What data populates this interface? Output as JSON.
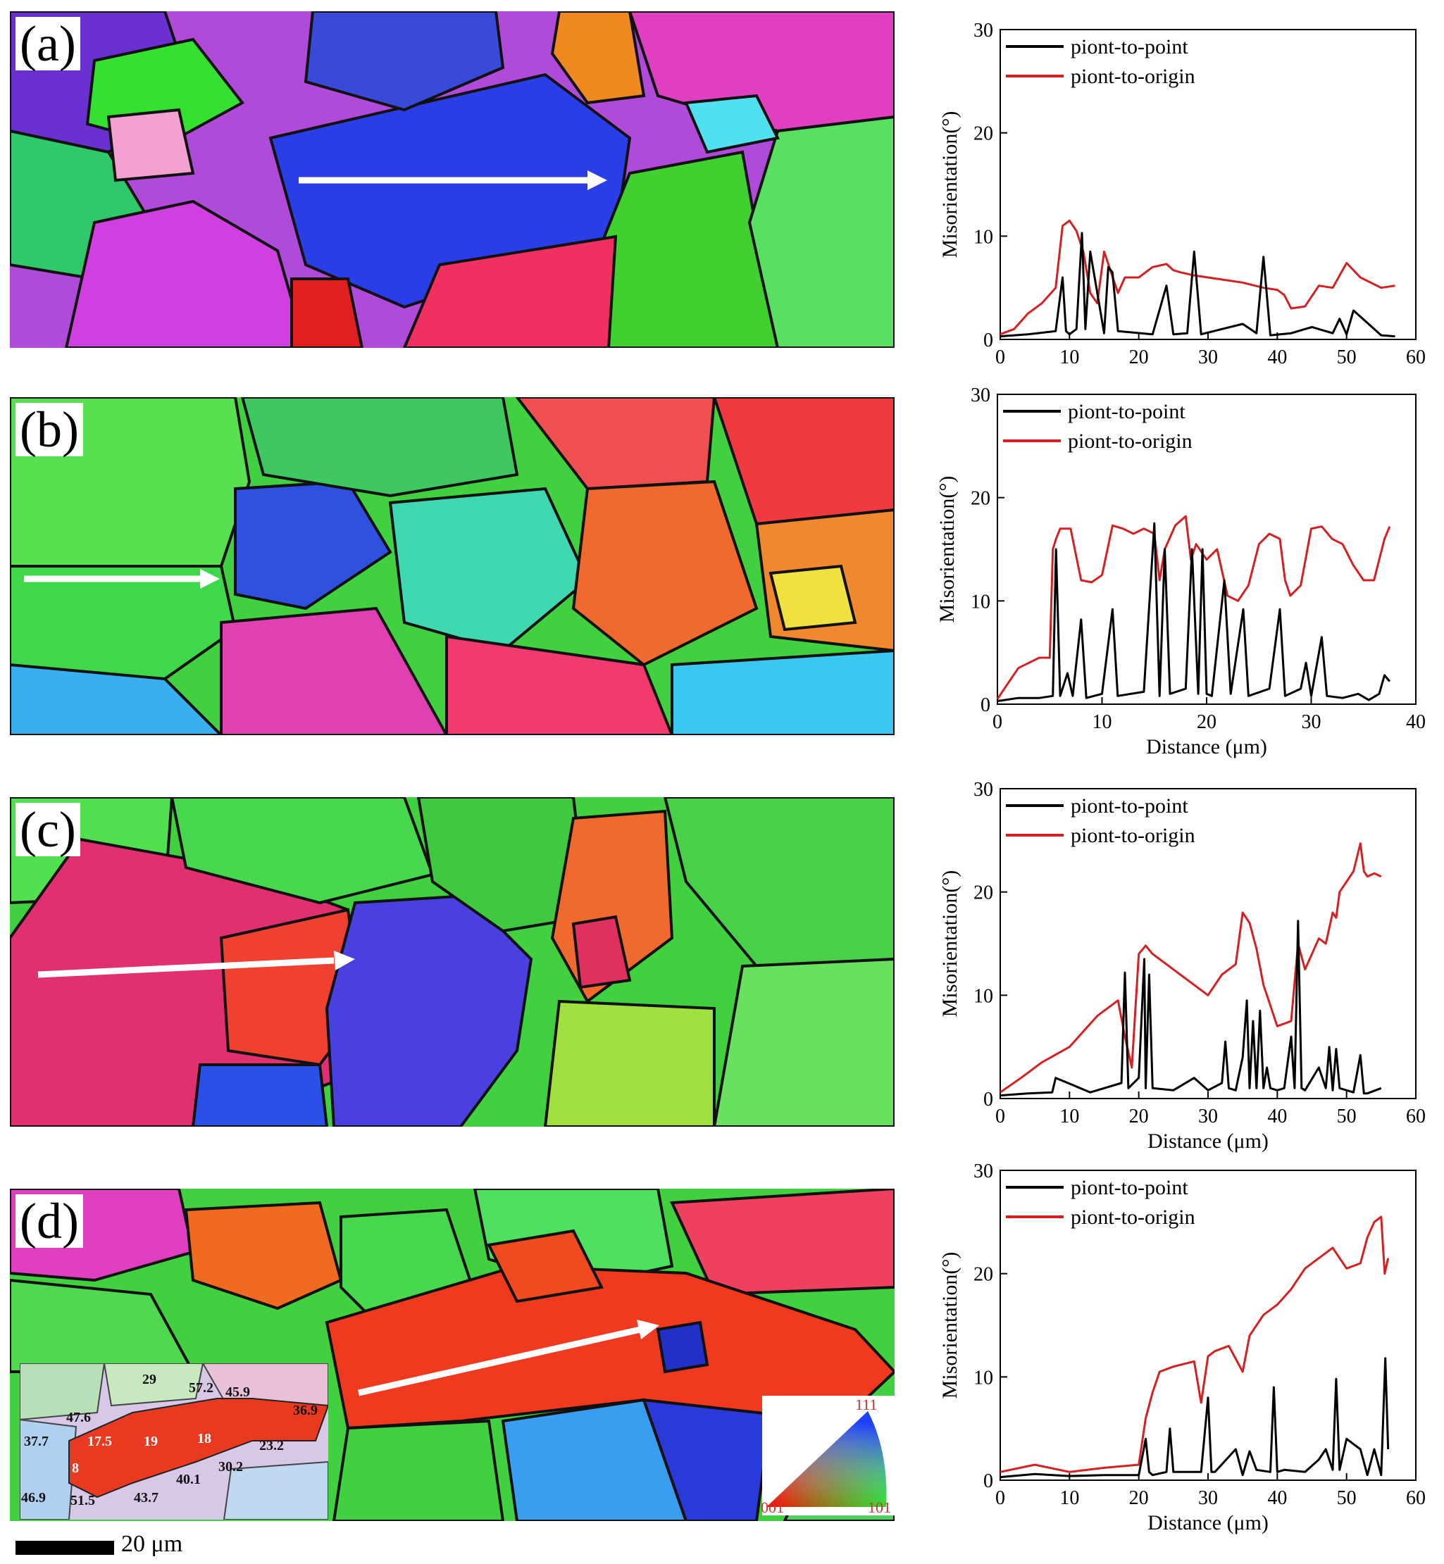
{
  "panels": [
    {
      "label": "(a)"
    },
    {
      "label": "(b)"
    },
    {
      "label": "(c)"
    },
    {
      "label": "(d)"
    }
  ],
  "legend": {
    "p2p": "piont-to-point",
    "p2o": "piont-to-origin"
  },
  "colors": {
    "p2p": "#000000",
    "p2o": "#d42020",
    "arrow": "#ffffff"
  },
  "ylabel": "Misorientation(°)",
  "xlabel": "Distance (μm)",
  "scale_bar": "20 μm",
  "ipf": {
    "a": "001",
    "b": "101",
    "c": "111"
  },
  "inset_values": [
    "29",
    "57.2",
    "45.9",
    "36.9",
    "47.6",
    "37.7",
    "17.5",
    "19",
    "18",
    "23.2",
    "30.2",
    "8",
    "40.1",
    "46.9",
    "51.5",
    "43.7"
  ],
  "chart_data": [
    {
      "type": "line",
      "panel": "(a)",
      "xlabel": "",
      "ylabel": "Misorientation(°)",
      "xlim": [
        0,
        60
      ],
      "ylim": [
        0,
        30
      ],
      "xticks": [
        0,
        10,
        20,
        30,
        40,
        50,
        60
      ],
      "yticks": [
        0,
        10,
        20,
        30
      ],
      "series": [
        {
          "name": "piont-to-point",
          "x": [
            0,
            4,
            8,
            9,
            9.5,
            10,
            11,
            11.8,
            12.3,
            13,
            15,
            15.6,
            16.2,
            17,
            22,
            24,
            25,
            27,
            28,
            29,
            35,
            37,
            38,
            39,
            42,
            45,
            48,
            49,
            50,
            51,
            55,
            57
          ],
          "y": [
            0.3,
            0.5,
            0.8,
            6,
            0.8,
            0.5,
            1,
            10.3,
            1,
            8.5,
            0.6,
            7,
            6.5,
            0.8,
            0.5,
            5.2,
            0.5,
            0.6,
            8.5,
            0.5,
            1.5,
            0.6,
            8,
            0.4,
            0.6,
            1.2,
            0.6,
            2,
            0.5,
            2.8,
            0.4,
            0.3
          ]
        },
        {
          "name": "piont-to-origin",
          "x": [
            0,
            2,
            4,
            6,
            8,
            9,
            10,
            11,
            12,
            13,
            14,
            15,
            16,
            17,
            18,
            20,
            22,
            24,
            25,
            26,
            28,
            30,
            35,
            38,
            40,
            41,
            42,
            44,
            46,
            48,
            50,
            52,
            55,
            57
          ],
          "y": [
            0.5,
            1,
            2.5,
            3.5,
            5,
            11,
            11.5,
            10.5,
            8.5,
            4.5,
            3.5,
            8.5,
            6.5,
            4.5,
            6,
            6,
            7,
            7.3,
            6.7,
            6.5,
            6.2,
            6,
            5.5,
            5,
            4.8,
            4.3,
            3,
            3.2,
            5.2,
            5,
            7.4,
            6,
            5,
            5.2
          ]
        }
      ]
    },
    {
      "type": "line",
      "panel": "(b)",
      "xlabel": "Distance (μm)",
      "ylabel": "Misorientation(°)",
      "xlim": [
        0,
        40
      ],
      "ylim": [
        0,
        30
      ],
      "xticks": [
        0,
        10,
        20,
        30,
        40
      ],
      "yticks": [
        0,
        10,
        20,
        30
      ],
      "series": [
        {
          "name": "piont-to-point",
          "x": [
            0,
            2,
            4,
            5.3,
            5.6,
            6,
            6.7,
            7.2,
            8,
            8.5,
            10,
            11,
            11.5,
            14,
            15,
            15.5,
            16,
            16.5,
            18,
            18.6,
            19.2,
            19.6,
            20,
            20.5,
            21.7,
            22.3,
            23.5,
            24,
            26,
            27,
            27.5,
            29,
            29.5,
            30,
            31,
            31.5,
            33,
            34.5,
            35.5,
            36.5,
            37,
            37.5
          ],
          "y": [
            0.3,
            0.6,
            0.6,
            0.8,
            15,
            0.8,
            3,
            0.8,
            8.2,
            0.6,
            1,
            9.2,
            0.8,
            1.2,
            17.5,
            0.8,
            15,
            1,
            1.5,
            15,
            1,
            15,
            1,
            0.8,
            12,
            1,
            9.2,
            0.8,
            1.5,
            9.2,
            0.8,
            1.5,
            4,
            0.8,
            6.5,
            0.8,
            0.6,
            1,
            0.4,
            1,
            2.8,
            2.2
          ]
        },
        {
          "name": "piont-to-origin",
          "x": [
            0,
            1,
            2,
            3,
            4,
            5,
            5.3,
            5.6,
            6,
            7,
            8,
            9,
            10,
            11,
            12,
            13,
            14,
            15,
            15.5,
            16,
            17,
            18,
            18.5,
            19,
            20,
            21,
            22,
            23,
            24,
            25,
            26,
            27,
            27.5,
            28,
            29,
            30,
            31,
            32,
            33,
            34,
            35,
            36,
            37,
            37.5
          ],
          "y": [
            0.5,
            2,
            3.5,
            4,
            4.5,
            4.5,
            15,
            16,
            17,
            17,
            12,
            11.8,
            12.5,
            17.3,
            17,
            16.5,
            17,
            16.5,
            12,
            15,
            17.3,
            18.2,
            14,
            15.5,
            14,
            15,
            10.5,
            10,
            11.5,
            15.5,
            16.5,
            16,
            12,
            10.5,
            11.5,
            17,
            17.2,
            16,
            15.5,
            13.5,
            12,
            12,
            16,
            17.2
          ]
        }
      ]
    },
    {
      "type": "line",
      "panel": "(c)",
      "xlabel": "Distance (μm)",
      "ylabel": "Misorientation(°)",
      "xlim": [
        0,
        60
      ],
      "ylim": [
        0,
        30
      ],
      "xticks": [
        0,
        10,
        20,
        30,
        40,
        50,
        60
      ],
      "yticks": [
        0,
        10,
        20,
        30
      ],
      "series": [
        {
          "name": "piont-to-point",
          "x": [
            0,
            4,
            7.5,
            8,
            13,
            17.5,
            18,
            18.5,
            20,
            20.8,
            21,
            21.5,
            22,
            25,
            28,
            30,
            32,
            32.5,
            33,
            34,
            35,
            35.6,
            36,
            36.5,
            37,
            37.5,
            38,
            38.5,
            39,
            40,
            41,
            42,
            42.5,
            43,
            43.5,
            44,
            46,
            47,
            47.5,
            48,
            48.5,
            49,
            50,
            51,
            52,
            52.5,
            53,
            55
          ],
          "y": [
            0.3,
            0.5,
            0.6,
            2,
            0.6,
            1.5,
            12.2,
            1,
            2,
            13.5,
            1,
            12,
            1,
            0.8,
            2,
            0.8,
            1.5,
            5.5,
            1,
            0.8,
            4,
            9.5,
            1,
            7.5,
            1,
            8.5,
            1,
            3,
            1,
            0.8,
            1,
            6,
            1,
            17.2,
            1,
            0.8,
            3,
            1,
            5,
            0.8,
            4.8,
            1,
            0.8,
            0.6,
            4.2,
            0.5,
            0.5,
            1
          ]
        },
        {
          "name": "piont-to-origin",
          "x": [
            0,
            3,
            6,
            10,
            14,
            17,
            18,
            19,
            20,
            21,
            22,
            25,
            28,
            30,
            32,
            34,
            35,
            36,
            37,
            38,
            40,
            42,
            43,
            44,
            46,
            47,
            48,
            48.5,
            49,
            50,
            51,
            52,
            52.5,
            53,
            54,
            55
          ],
          "y": [
            0.6,
            2,
            3.5,
            5,
            8,
            9.5,
            6,
            3,
            14,
            14.8,
            14,
            12.5,
            11,
            10,
            12,
            13,
            18,
            17,
            14.5,
            11,
            7,
            7.5,
            15,
            12.5,
            15.5,
            15,
            18,
            17.5,
            20,
            21,
            22,
            24.7,
            22,
            21.5,
            21.8,
            21.5
          ]
        }
      ]
    },
    {
      "type": "line",
      "panel": "(d)",
      "xlabel": "Distance (μm)",
      "ylabel": "Misorientation(°)",
      "xlim": [
        0,
        60
      ],
      "ylim": [
        0,
        30
      ],
      "xticks": [
        0,
        10,
        20,
        30,
        40,
        50,
        60
      ],
      "yticks": [
        0,
        10,
        20,
        30
      ],
      "series": [
        {
          "name": "piont-to-point",
          "x": [
            0,
            5,
            10,
            15,
            20,
            21,
            21.5,
            22,
            24,
            24.5,
            25,
            29,
            30,
            30.5,
            31,
            34,
            35,
            36,
            37,
            39,
            39.5,
            40,
            41,
            44,
            46,
            47,
            48,
            48.5,
            49,
            50,
            51,
            52,
            53,
            54,
            55,
            55.6,
            56
          ],
          "y": [
            0.3,
            0.6,
            0.4,
            0.5,
            0.5,
            4,
            0.8,
            0.5,
            0.8,
            5,
            0.8,
            0.8,
            8,
            0.8,
            0.8,
            3,
            0.5,
            2.8,
            1,
            0.8,
            9,
            0.8,
            1,
            0.8,
            2,
            3,
            1,
            9.8,
            1,
            4,
            3.5,
            3,
            0.5,
            3,
            0.5,
            11.8,
            3
          ]
        },
        {
          "name": "piont-to-origin",
          "x": [
            0,
            5,
            10,
            15,
            20,
            21,
            22,
            23,
            25,
            28,
            29,
            30,
            31,
            33,
            35,
            36,
            37,
            38,
            40,
            42,
            44,
            46,
            48,
            50,
            52,
            53,
            54,
            55,
            55.5,
            56
          ],
          "y": [
            0.8,
            1.5,
            0.8,
            1.2,
            1.5,
            6,
            8.5,
            10.5,
            11,
            11.5,
            7.5,
            12,
            12.5,
            13,
            10.5,
            14,
            15,
            16,
            17,
            18.5,
            20.5,
            21.5,
            22.5,
            20.5,
            21,
            23.5,
            25,
            25.5,
            20,
            21.5
          ]
        }
      ]
    }
  ]
}
